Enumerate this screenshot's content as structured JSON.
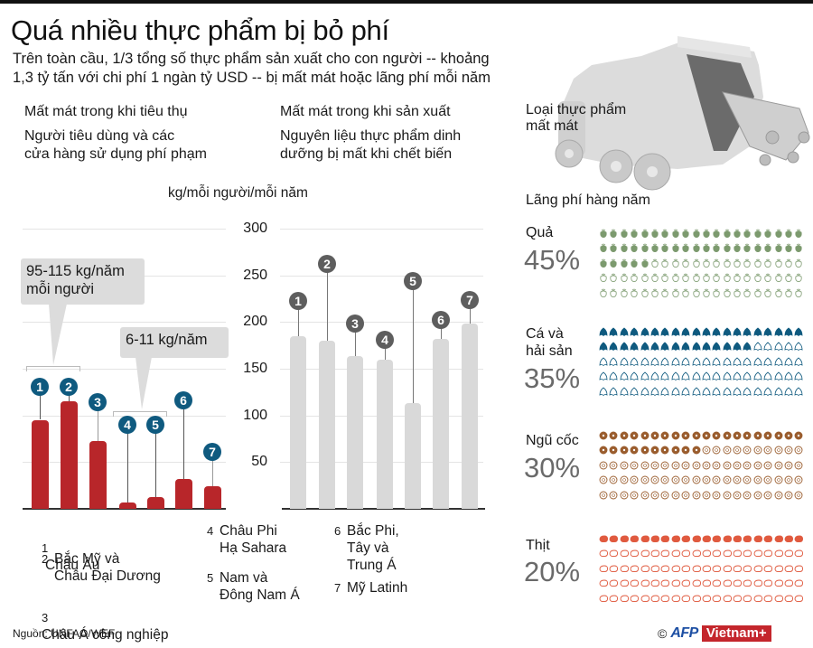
{
  "header": {
    "title": "Quá nhiều thực phẩm bị bỏ phí",
    "subtitle_line1": "Trên toàn cầu, 1/3 tổng số thực phẩm sản xuất cho con người -- khoảng",
    "subtitle_line2": "1,3 tỷ tấn với chi phí 1 ngàn tỷ USD -- bị mất mát hoặc lãng phí mỗi năm"
  },
  "sections": {
    "consumption": {
      "heading": "Mất mát trong khi tiêu thụ",
      "description": "Người tiêu dùng và các\ncửa hàng sử dụng phí phạm"
    },
    "production": {
      "heading": "Mất mát trong khi sản xuất",
      "description": "Nguyên liệu thực phẩm dinh\ndưỡng bị mất khi chết biến"
    },
    "food_types": {
      "heading": "Loại thực phẩm\nmất mát",
      "subheading": "Lãng phí hàng năm"
    }
  },
  "unit_label": "kg/mỗi người/mỗi năm",
  "callouts": {
    "high": "95-115 kg/năm\nmỗi người",
    "low": "6-11 kg/năm"
  },
  "legend": [
    {
      "num": "1",
      "label": "Châu Âu"
    },
    {
      "num": "2",
      "label": "Bắc Mỹ và\nChâu Đại Dương"
    },
    {
      "num": "3",
      "label": "Châu Á công nghiệp"
    },
    {
      "num": "4",
      "label": "Châu Phi\nHạ Sahara"
    },
    {
      "num": "5",
      "label": "Nam và\nĐông Nam Á"
    },
    {
      "num": "6",
      "label": "Bắc Phi,\nTây và\nTrung Á"
    },
    {
      "num": "7",
      "label": "Mỹ Latinh"
    }
  ],
  "food_categories": [
    {
      "label": "Quả",
      "percent": "45%",
      "filled": 45,
      "color": "#7c9a6e",
      "icon": "fruit-icon"
    },
    {
      "label": "Cá và\nhải sản",
      "percent": "35%",
      "filled": 35,
      "color": "#0f5a7f",
      "icon": "fish-icon"
    },
    {
      "label": "Ngũ cốc",
      "percent": "30%",
      "filled": 30,
      "color": "#9a5d2e",
      "icon": "grain-icon"
    },
    {
      "label": "Thịt",
      "percent": "20%",
      "filled": 20,
      "color": "#e05a3f",
      "icon": "meat-icon"
    }
  ],
  "footer": {
    "source": "Nguồn: UNFAO/WEF",
    "copyright": "©",
    "logo_afp": "AFP",
    "logo_vn": "Vietnam+"
  },
  "colors": {
    "consumption_bar": "#b8262a",
    "production_bar": "#d9d9d9",
    "consumption_marker": "#0f5a7f",
    "production_marker": "#5e5e5e"
  },
  "chart_data": [
    {
      "type": "bar",
      "title": "Mất mát trong khi tiêu thụ",
      "ylabel": "kg/mỗi người/mỗi năm",
      "categories": [
        "1",
        "2",
        "3",
        "4",
        "5",
        "6",
        "7"
      ],
      "category_names": [
        "Châu Âu",
        "Bắc Mỹ và Châu Đại Dương",
        "Châu Á công nghiệp",
        "Châu Phi Hạ Sahara",
        "Nam và Đông Nam Á",
        "Bắc Phi, Tây và Trung Á",
        "Mỹ Latinh"
      ],
      "values": [
        95,
        115,
        73,
        6,
        11,
        32,
        24
      ],
      "ylim": [
        0,
        300
      ],
      "yticks": [
        50,
        100,
        150,
        200,
        250,
        300
      ],
      "grid": true,
      "annotations": [
        "95-115 kg/năm mỗi người (1-2)",
        "6-11 kg/năm (4-5)"
      ]
    },
    {
      "type": "bar",
      "title": "Mất mát trong khi sản xuất",
      "ylabel": "kg/mỗi người/mỗi năm",
      "categories": [
        "1",
        "2",
        "3",
        "4",
        "5",
        "6",
        "7"
      ],
      "category_names": [
        "Châu Âu",
        "Bắc Mỹ và Châu Đại Dương",
        "Châu Á công nghiệp",
        "Châu Phi Hạ Sahara",
        "Nam và Đông Nam Á",
        "Bắc Phi, Tây và Trung Á",
        "Mỹ Latinh"
      ],
      "values": [
        185,
        180,
        163,
        160,
        113,
        182,
        198
      ],
      "ylim": [
        0,
        300
      ],
      "yticks": [
        50,
        100,
        150,
        200,
        250,
        300
      ],
      "grid": true
    },
    {
      "type": "table",
      "title": "Loại thực phẩm mất mát — Lãng phí hàng năm",
      "categories": [
        "Quả",
        "Cá và hải sản",
        "Ngũ cốc",
        "Thịt"
      ],
      "values": [
        45,
        35,
        30,
        20
      ],
      "unit": "%"
    }
  ]
}
